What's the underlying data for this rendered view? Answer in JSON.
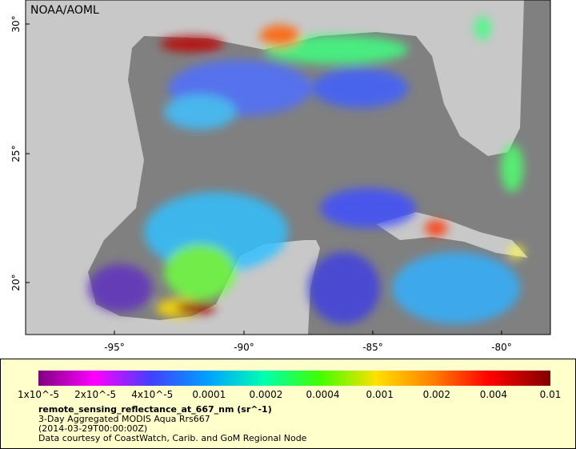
{
  "map": {
    "credit": "NOAA/AOML",
    "lat_labels": [
      "30°",
      "25°",
      "20°"
    ],
    "lon_labels": [
      "-95°",
      "-90°",
      "-85°",
      "-80°"
    ]
  },
  "colorbar": {
    "ticks": [
      "1x10^-5",
      "2x10^-5",
      "4x10^-5",
      "0.0001",
      "0.0002",
      "0.0004",
      "0.001",
      "0.002",
      "0.004",
      "0.01"
    ],
    "variable": "remote_sensing_reflectance_at_667_nm (sr^-1)",
    "description": "3-Day Aggregated MODIS Aqua Rrs667",
    "time": "(2014-03-29T00:00:00Z)",
    "source": "Data courtesy of CoastWatch, Carib. and GoM Regional Node"
  }
}
